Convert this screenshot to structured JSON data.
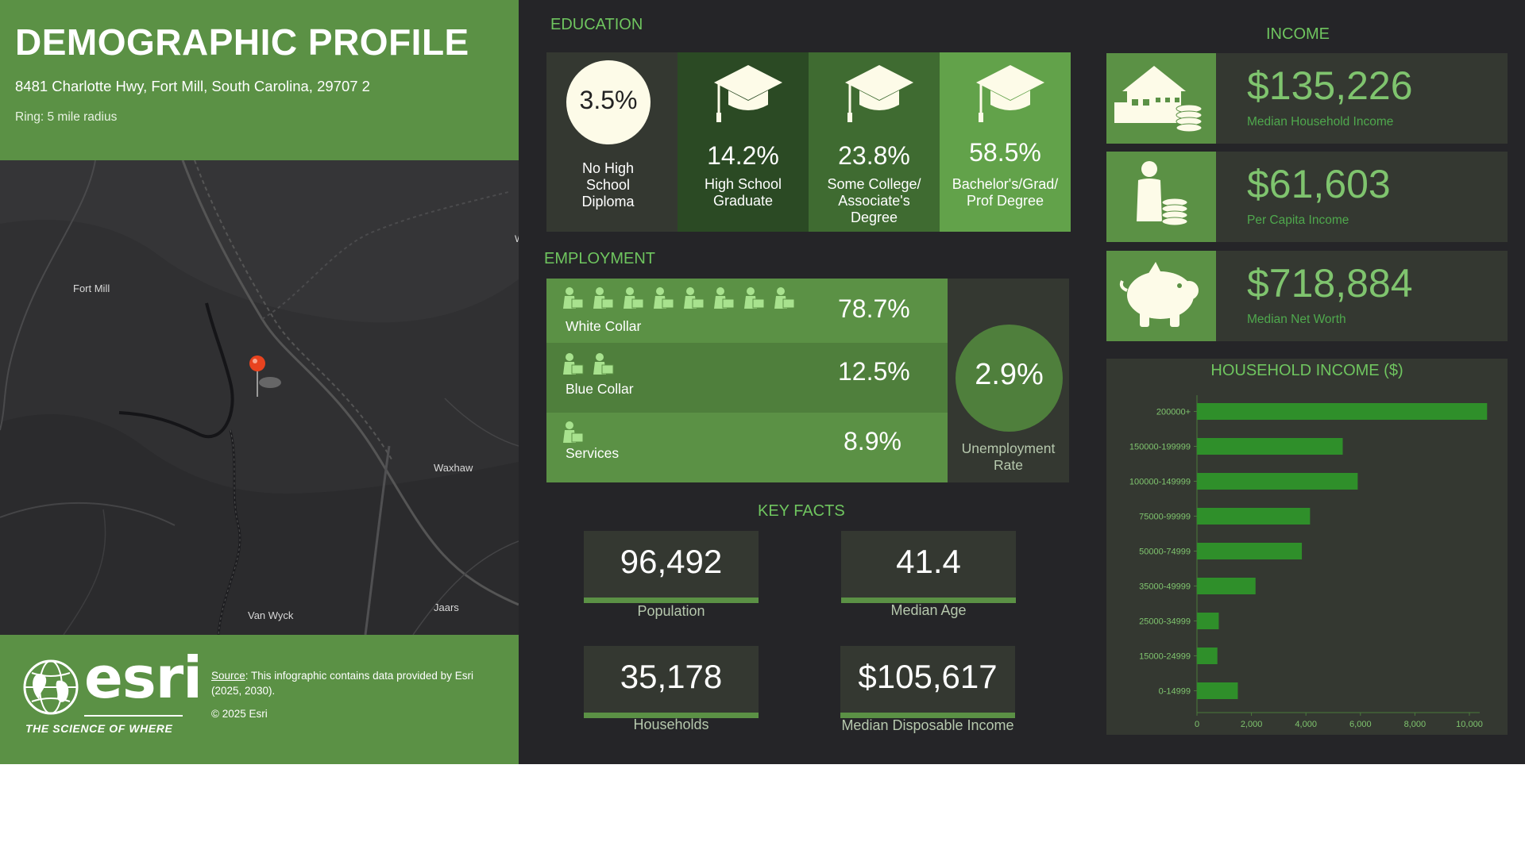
{
  "header": {
    "title": "DEMOGRAPHIC PROFILE",
    "address": "8481 Charlotte Hwy, Fort Mill, South Carolina, 29707 2",
    "ring": "Ring: 5 mile radius"
  },
  "map": {
    "labels": {
      "fort_mill": "Fort Mill",
      "waxhaw": "Waxhaw",
      "van_wyck": "Van Wyck",
      "jaars": "Jaars",
      "edge_letter": "W"
    },
    "pin_color": "#e8431f"
  },
  "footer": {
    "logo_text": "esri",
    "tagline": "THE SCIENCE OF WHERE",
    "source_label": "Source",
    "source_text": ": This infographic contains data provided by Esri (2025, 2030).",
    "copyright": "© 2025 Esri"
  },
  "education": {
    "title": "EDUCATION",
    "items": [
      {
        "value": "3.5%",
        "label_lines": [
          "No High",
          "School",
          "Diploma"
        ]
      },
      {
        "value": "14.2%",
        "label_lines": [
          "High School",
          "Graduate"
        ]
      },
      {
        "value": "23.8%",
        "label_lines": [
          "Some College/",
          "Associate's",
          "Degree"
        ]
      },
      {
        "value": "58.5%",
        "label_lines": [
          "Bachelor's/Grad/",
          "Prof Degree"
        ]
      }
    ]
  },
  "employment": {
    "title": "EMPLOYMENT",
    "rows": [
      {
        "label": "White Collar",
        "value": "78.7%",
        "icon": "worker-icon",
        "icon_count": 8
      },
      {
        "label": "Blue Collar",
        "value": "12.5%",
        "icon": "worker-icon",
        "icon_count": 2
      },
      {
        "label": "Services",
        "value": "8.9%",
        "icon": "worker-icon",
        "icon_count": 1
      }
    ],
    "unemployment_value": "2.9%",
    "unemployment_label_lines": [
      "Unemployment",
      "Rate"
    ]
  },
  "key_facts": {
    "title": "KEY FACTS",
    "items": [
      {
        "value": "96,492",
        "label": "Population"
      },
      {
        "value": "41.4",
        "label": "Median Age"
      },
      {
        "value": "35,178",
        "label": "Households"
      },
      {
        "value": "$105,617",
        "label": "Median Disposable Income"
      }
    ]
  },
  "income": {
    "title": "INCOME",
    "items": [
      {
        "value": "$135,226",
        "label": "Median Household Income",
        "icon": "house-coins-icon"
      },
      {
        "value": "$61,603",
        "label": "Per Capita Income",
        "icon": "person-coins-icon"
      },
      {
        "value": "$718,884",
        "label": "Median Net Worth",
        "icon": "piggy-bank-icon"
      }
    ]
  },
  "chart_data": {
    "type": "bar",
    "orientation": "horizontal",
    "title": "HOUSEHOLD INCOME ($)",
    "categories": [
      "200000+",
      "150000-199999",
      "100000-149999",
      "75000-99999",
      "50000-74999",
      "35000-49999",
      "25000-34999",
      "15000-24999",
      "0-14999"
    ],
    "values": [
      10650,
      5350,
      5900,
      4150,
      3850,
      2150,
      800,
      750,
      1500
    ],
    "xlim": [
      0,
      10000
    ],
    "xticks": [
      0,
      2000,
      4000,
      6000,
      8000,
      10000
    ],
    "xtick_labels": [
      "0",
      "2,000",
      "4,000",
      "6,000",
      "8,000",
      "10,000"
    ],
    "bar_color": "#2f8f2a",
    "grid": false
  },
  "colors": {
    "accent_green": "#5b9145",
    "dark_background": "#252528",
    "panel_dark": "#343831",
    "title_green": "#6fc55f"
  }
}
